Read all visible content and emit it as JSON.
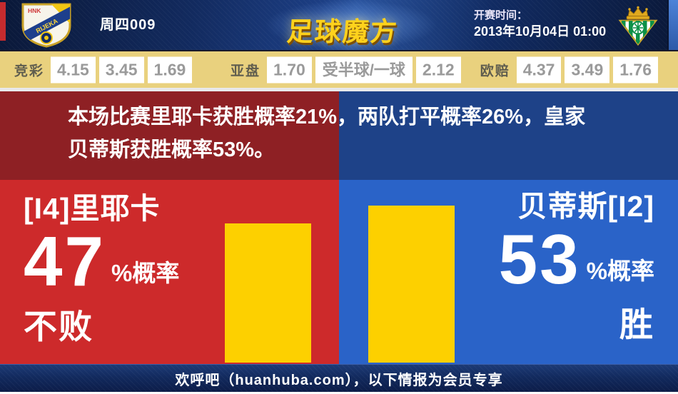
{
  "header": {
    "match_code": "周四009",
    "site_logo": "足球魔方",
    "kickoff_label": "开赛时间：",
    "kickoff_time": "2013年10月04日 01:00",
    "home_crest": {
      "top_text": "HNK",
      "band_text": "RIJEKA"
    }
  },
  "odds_bar": {
    "jingcai": {
      "label": "竞彩",
      "values": [
        "4.15",
        "3.45",
        "1.69"
      ]
    },
    "yapan": {
      "label": "亚盘",
      "values": [
        "1.70",
        "受半球/一球",
        "2.12"
      ]
    },
    "oupei": {
      "label": "欧赔",
      "values": [
        "4.37",
        "3.49",
        "1.76"
      ]
    }
  },
  "banner": {
    "text": "本场比赛里耶卡获胜概率21%，两队打平概率26%，皇家贝蒂斯获胜概率53%。"
  },
  "prediction": {
    "home": {
      "team": "[I4]里耶卡",
      "percent": "47",
      "suffix": "%概率",
      "outcome": "不败",
      "bar_value": 47
    },
    "away": {
      "team": "贝蒂斯[I2]",
      "percent": "53",
      "suffix": "%概率",
      "outcome": "胜",
      "bar_value": 53
    }
  },
  "footer": {
    "text": "欢呼吧（huanhuba.com），以下情报为会员专享"
  },
  "colors": {
    "home_red": "#cd2a2b",
    "away_blue": "#2a63c8",
    "banner_red": "#8e2024",
    "banner_blue": "#1e4288",
    "bar_yellow": "#fdd000",
    "odds_bg": "#e9d17e",
    "header_navy": "#0f2150",
    "logo_gold": "#ffd21c"
  }
}
